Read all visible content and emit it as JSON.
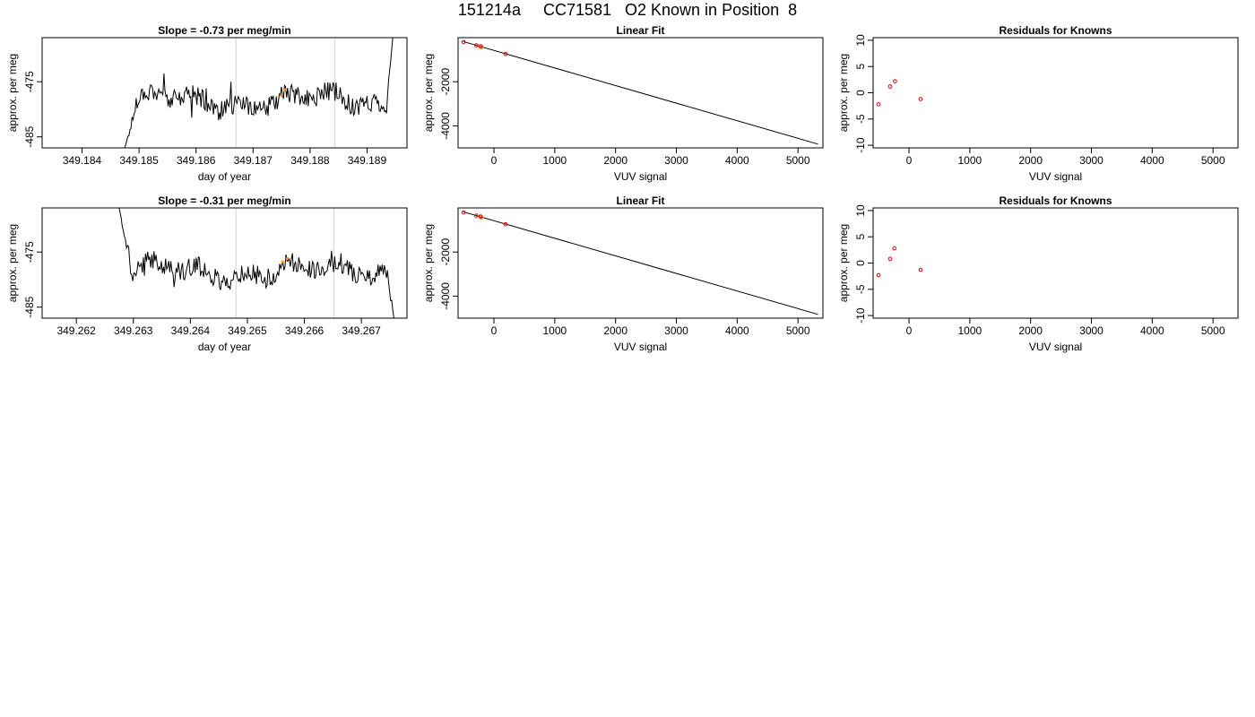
{
  "page": {
    "title": "151214a     CC71581   O2 Known in Position  8"
  },
  "chart_data": [
    {
      "type": "line",
      "panel": "time-series",
      "title": "Slope =  -0.73  per meg/min",
      "xlabel": "day of year",
      "ylabel": "approx. per meg",
      "xlim": [
        349.1833,
        349.1897
      ],
      "ylim": [
        -487,
        -467
      ],
      "xticks": [
        349.184,
        349.185,
        349.186,
        349.187,
        349.188,
        349.189
      ],
      "xtick_labels": [
        "349.184",
        "349.185",
        "349.186",
        "349.187",
        "349.188",
        "349.189"
      ],
      "yticks": [
        -475,
        -485
      ],
      "ytick_labels": [
        "-475",
        "-485"
      ],
      "vlines": [
        349.1867,
        349.18843
      ],
      "line_start": 349.18475,
      "line_end": 349.18945,
      "line_y0": -487,
      "line_y_end": -467,
      "seed": 17,
      "orange_marks": [
        [
          349.1875,
          -477.5
        ],
        [
          349.18756,
          -476.5
        ]
      ],
      "grid": false
    },
    {
      "type": "scatter",
      "panel": "linear-fit",
      "title": "Linear Fit",
      "xlabel": "VUV signal",
      "ylabel": "approx. per meg",
      "xlim": [
        -590,
        5410
      ],
      "ylim": [
        -5000,
        0
      ],
      "xticks": [
        0,
        1000,
        2000,
        3000,
        4000,
        5000
      ],
      "xtick_labels": [
        "0",
        "1000",
        "2000",
        "3000",
        "4000",
        "5000"
      ],
      "yticks": [
        -2000,
        -4000
      ],
      "ytick_labels": [
        "-2000",
        "-4000"
      ],
      "fit_line": [
        [
          -500,
          -180
        ],
        [
          5330,
          -4830
        ]
      ],
      "points_red": [
        [
          -500,
          -200
        ],
        [
          -290,
          -350
        ],
        [
          -220,
          -390
        ],
        [
          190,
          -740
        ]
      ],
      "points_orange": [
        [
          -210,
          -420
        ]
      ],
      "grid": false
    },
    {
      "type": "scatter",
      "panel": "residuals",
      "title": "Residuals for Knowns",
      "xlabel": "VUV signal",
      "ylabel": "approx. per meg",
      "xlim": [
        -590,
        5410
      ],
      "ylim": [
        -10.5,
        10.5
      ],
      "xticks": [
        0,
        1000,
        2000,
        3000,
        4000,
        5000
      ],
      "xtick_labels": [
        "0",
        "1000",
        "2000",
        "3000",
        "4000",
        "5000"
      ],
      "yticks": [
        10,
        5,
        0,
        -5,
        -10
      ],
      "ytick_labels": [
        "10",
        "5",
        "0",
        "-5",
        "-10"
      ],
      "points_red": [
        [
          -500,
          -2.2
        ],
        [
          -310,
          1.2
        ],
        [
          -230,
          2.2
        ],
        [
          190,
          -1.2
        ]
      ],
      "grid": false
    },
    {
      "type": "line",
      "panel": "time-series",
      "title": "Slope =  -0.31  per meg/min",
      "xlabel": "day of year",
      "ylabel": "approx. per meg",
      "xlim": [
        349.2614,
        349.2678
      ],
      "ylim": [
        -487,
        -467
      ],
      "xticks": [
        349.262,
        349.263,
        349.264,
        349.265,
        349.266,
        349.267
      ],
      "xtick_labels": [
        "349.262",
        "349.263",
        "349.264",
        "349.265",
        "349.266",
        "349.267"
      ],
      "yticks": [
        -475,
        -485
      ],
      "ytick_labels": [
        "-475",
        "-485"
      ],
      "vlines": [
        349.2648,
        349.26652
      ],
      "line_start": 349.26275,
      "line_end": 349.26757,
      "line_y0": -467,
      "line_y_end": -487,
      "seed": 41,
      "orange_marks": [
        [
          349.26562,
          -476.8
        ],
        [
          349.2657,
          -476.2
        ]
      ],
      "grid": false
    },
    {
      "type": "scatter",
      "panel": "linear-fit",
      "title": "Linear Fit",
      "xlabel": "VUV signal",
      "ylabel": "approx. per meg",
      "xlim": [
        -590,
        5410
      ],
      "ylim": [
        -5000,
        0
      ],
      "xticks": [
        0,
        1000,
        2000,
        3000,
        4000,
        5000
      ],
      "xtick_labels": [
        "0",
        "1000",
        "2000",
        "3000",
        "4000",
        "5000"
      ],
      "yticks": [
        -2000,
        -4000
      ],
      "ytick_labels": [
        "-2000",
        "-4000"
      ],
      "fit_line": [
        [
          -500,
          -180
        ],
        [
          5330,
          -4830
        ]
      ],
      "points_red": [
        [
          -500,
          -200
        ],
        [
          -290,
          -350
        ],
        [
          -220,
          -390
        ],
        [
          190,
          -740
        ]
      ],
      "points_orange": [
        [
          -210,
          -420
        ]
      ],
      "grid": false
    },
    {
      "type": "scatter",
      "panel": "residuals",
      "title": "Residuals for Knowns",
      "xlabel": "VUV signal",
      "ylabel": "approx. per meg",
      "xlim": [
        -590,
        5410
      ],
      "ylim": [
        -10.5,
        10.5
      ],
      "xticks": [
        0,
        1000,
        2000,
        3000,
        4000,
        5000
      ],
      "xtick_labels": [
        "0",
        "1000",
        "2000",
        "3000",
        "4000",
        "5000"
      ],
      "yticks": [
        10,
        5,
        0,
        -5,
        -10
      ],
      "ytick_labels": [
        "10",
        "5",
        "0",
        "-5",
        "-10"
      ],
      "points_red": [
        [
          -500,
          -2.3
        ],
        [
          -310,
          0.8
        ],
        [
          -240,
          2.8
        ],
        [
          190,
          -1.3
        ]
      ],
      "grid": false
    }
  ]
}
